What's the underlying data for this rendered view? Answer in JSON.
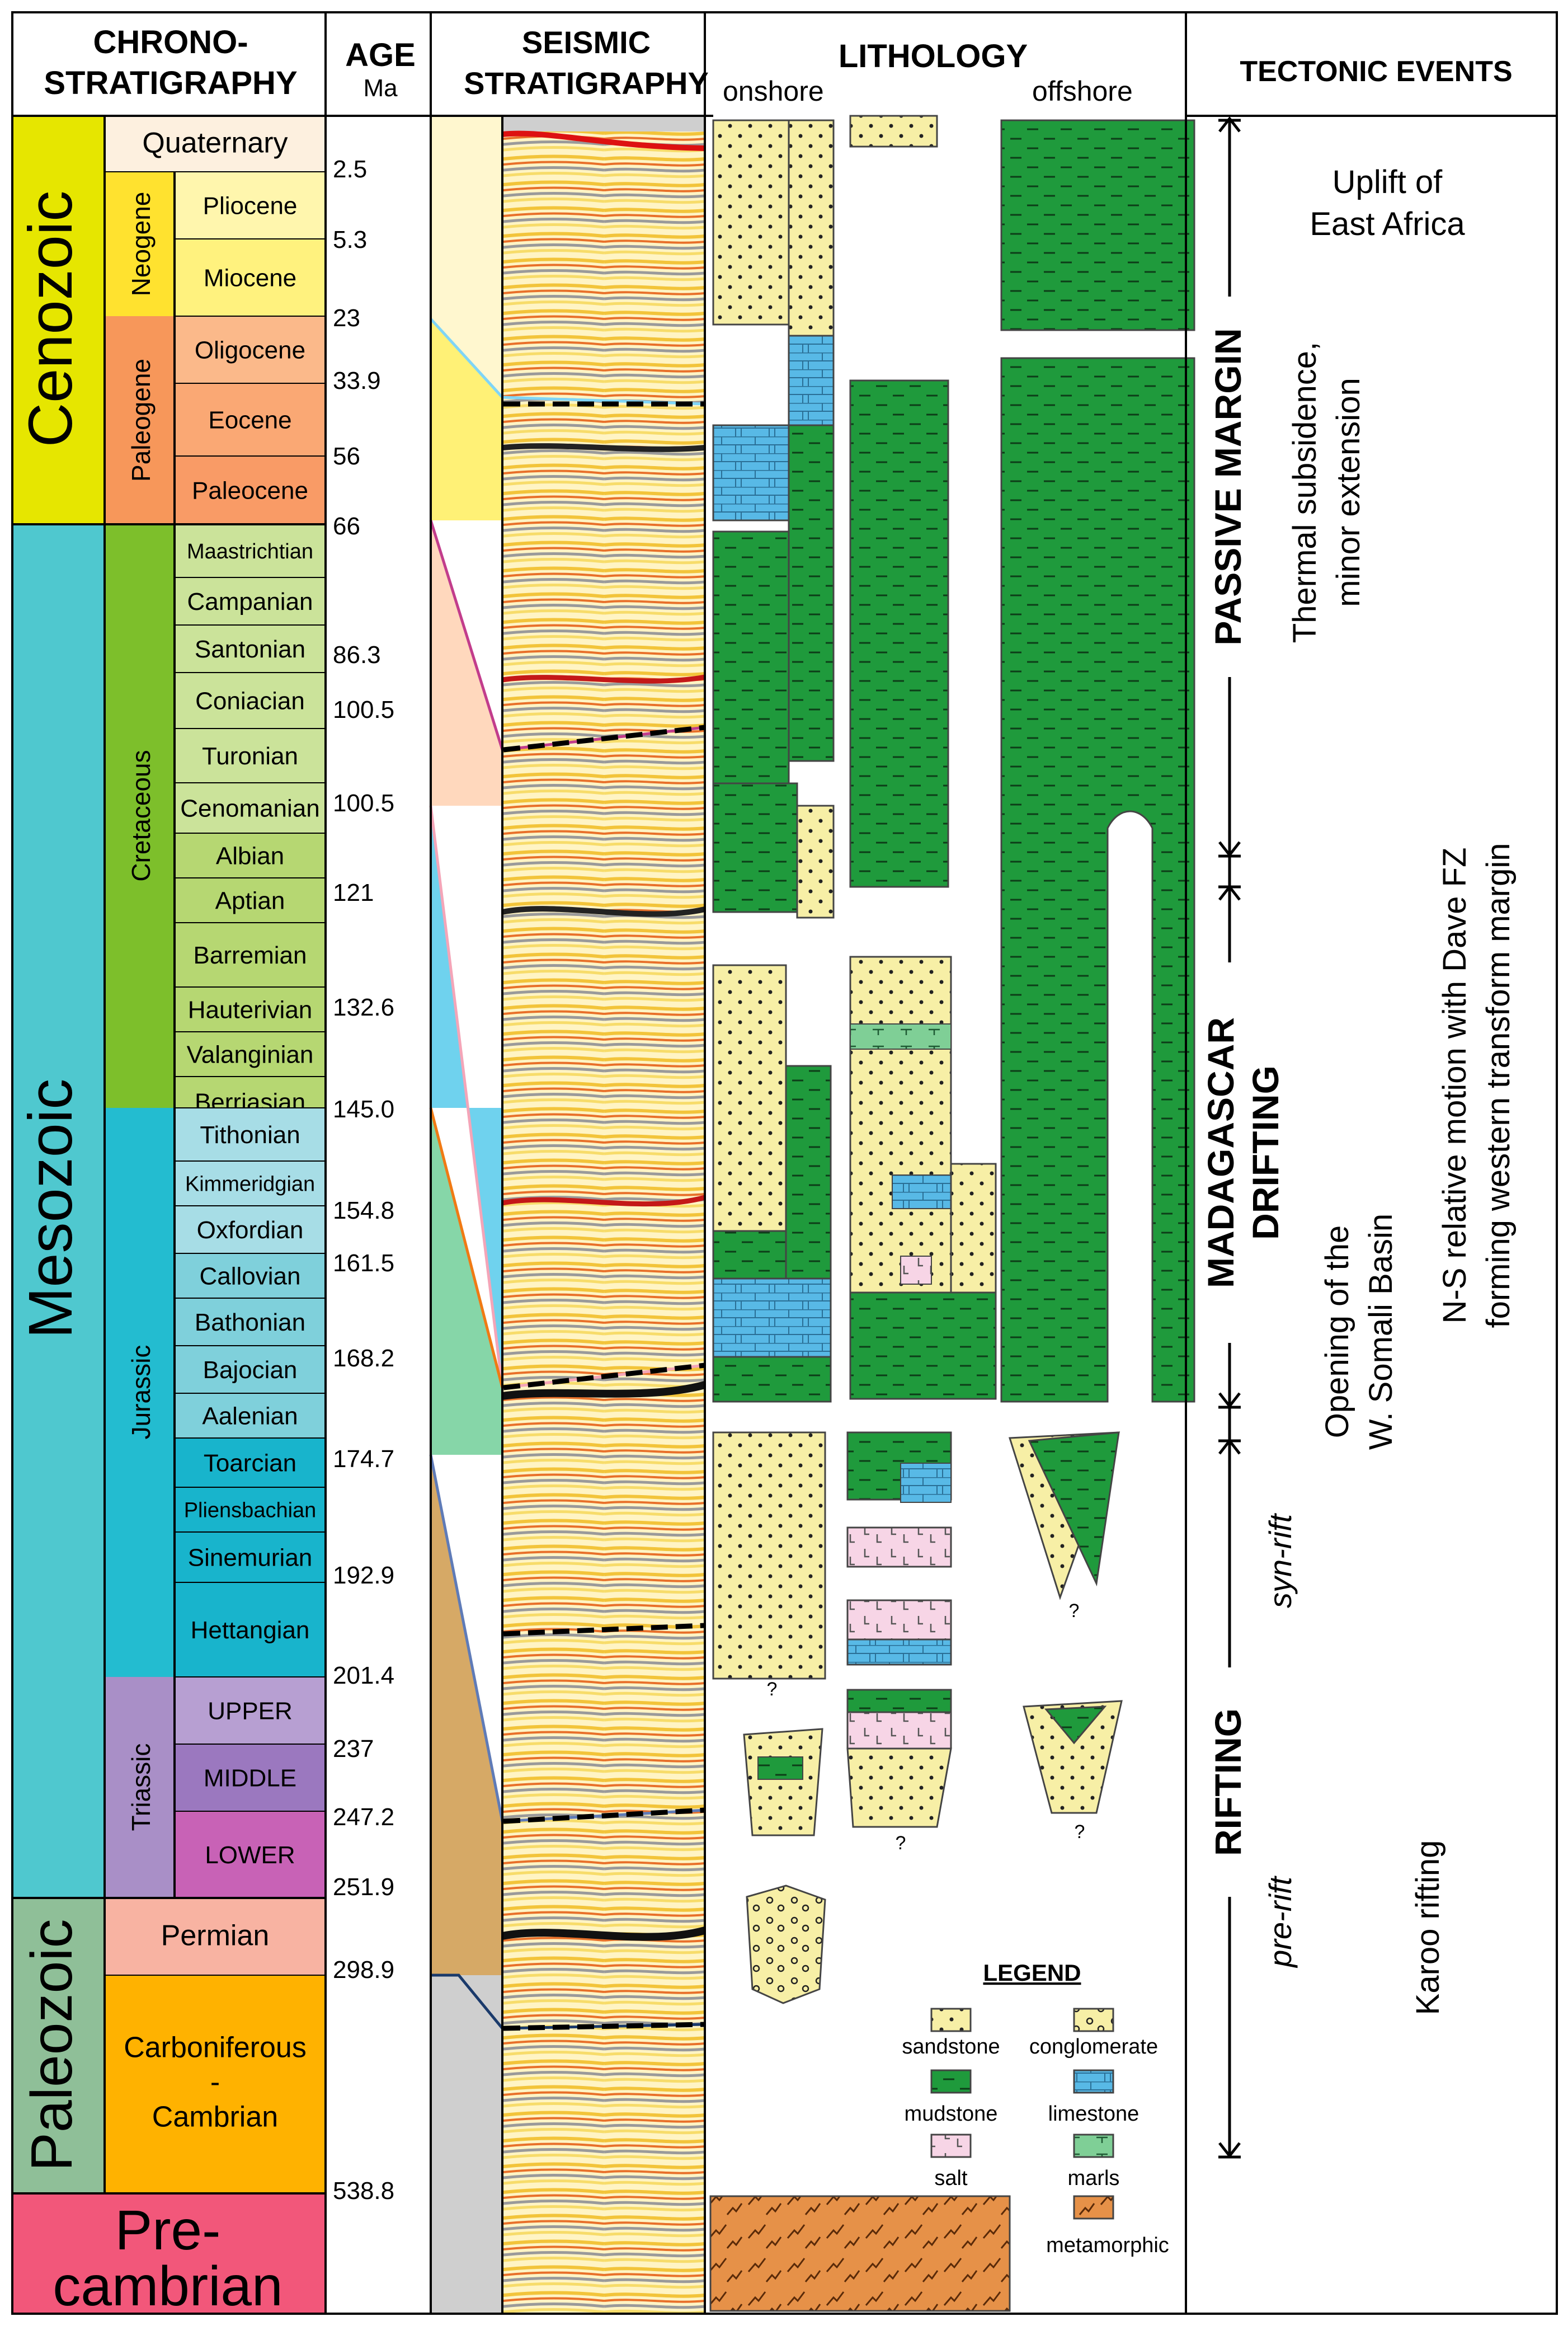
{
  "headers": {
    "chrono_1": "CHRONO-",
    "chrono_2": "STRATIGRAPHY",
    "age": "AGE",
    "age_unit": "Ma",
    "seismic_1": "SEISMIC",
    "seismic_2": "STRATIGRAPHY",
    "lithology": "LITHOLOGY",
    "onshore": "onshore",
    "offshore": "offshore",
    "tectonic": "TECTONIC EVENTS"
  },
  "eras": [
    {
      "name": "Cenozoic",
      "color": "#e6e600"
    },
    {
      "name": "Mesozoic",
      "color": "#4fc8cf"
    },
    {
      "name": "Paleozoic",
      "color": "#8fbf98"
    },
    {
      "name": "Pre-",
      "name2": "cambrian",
      "color": "#f2577a"
    }
  ],
  "periods": [
    {
      "name": "Neogene",
      "color": "#ffe22f"
    },
    {
      "name": "Paleogene",
      "color": "#f7975a"
    },
    {
      "name": "Cretaceous",
      "color": "#7dbf2b"
    },
    {
      "name": "Jurassic",
      "color": "#23bcd0"
    },
    {
      "name": "Triassic",
      "color": "#a98fc7"
    }
  ],
  "stages": [
    {
      "name": "Quaternary",
      "color": "#fdf0df"
    },
    {
      "name": "Pliocene",
      "color": "#fff6ad"
    },
    {
      "name": "Miocene",
      "color": "#fff27e"
    },
    {
      "name": "Oligocene",
      "color": "#fbb98a"
    },
    {
      "name": "Eocene",
      "color": "#faa874"
    },
    {
      "name": "Paleocene",
      "color": "#f99b66"
    },
    {
      "name": "Maastrichtian",
      "color": "#cbe39a"
    },
    {
      "name": "Campanian",
      "color": "#cbe39a"
    },
    {
      "name": "Santonian",
      "color": "#cbe39a"
    },
    {
      "name": "Coniacian",
      "color": "#cbe39a"
    },
    {
      "name": "Turonian",
      "color": "#cbe39a"
    },
    {
      "name": "Cenomanian",
      "color": "#cbe39a"
    },
    {
      "name": "Albian",
      "color": "#b6d772"
    },
    {
      "name": "Aptian",
      "color": "#b6d772"
    },
    {
      "name": "Barremian",
      "color": "#b6d772"
    },
    {
      "name": "Hauterivian",
      "color": "#b6d772"
    },
    {
      "name": "Valanginian",
      "color": "#b6d772"
    },
    {
      "name": "Berriasian",
      "color": "#b6d772"
    },
    {
      "name": "Tithonian",
      "color": "#a7dde6"
    },
    {
      "name": "Kimmeridgian",
      "color": "#a7dde6"
    },
    {
      "name": "Oxfordian",
      "color": "#a7dde6"
    },
    {
      "name": "Callovian",
      "color": "#7fd0db"
    },
    {
      "name": "Bathonian",
      "color": "#7fd0db"
    },
    {
      "name": "Bajocian",
      "color": "#7fd0db"
    },
    {
      "name": "Aalenian",
      "color": "#7fd0db"
    },
    {
      "name": "Toarcian",
      "color": "#18b4cc"
    },
    {
      "name": "Pliensbachian",
      "color": "#18b4cc"
    },
    {
      "name": "Sinemurian",
      "color": "#18b4cc"
    },
    {
      "name": "Hettangian",
      "color": "#18b4cc"
    },
    {
      "name": "UPPER",
      "color": "#b79fd2"
    },
    {
      "name": "MIDDLE",
      "color": "#9b78bf"
    },
    {
      "name": "LOWER",
      "color": "#c862b6"
    },
    {
      "name": "Permian",
      "color": "#f8b3a2"
    },
    {
      "name": "Carboniferous",
      "name2": "-",
      "name3": "Cambrian",
      "color": "#ffb200"
    }
  ],
  "ages": [
    "2.5",
    "5.3",
    "23",
    "33.9",
    "56",
    "66",
    "86.3",
    "100.5",
    "100.5",
    "121",
    "132.6",
    "145.0",
    "154.8",
    "161.5",
    "168.2",
    "174.7",
    "192.9",
    "201.4",
    "237",
    "247.2",
    "251.9",
    "298.9",
    "538.8"
  ],
  "tectonic": {
    "passive_margin": "PASSIVE MARGIN",
    "drifting_1": "MADAGASCAR",
    "drifting_2": "DRIFTING",
    "rifting": "RIFTING",
    "syn_rift": "syn-rift",
    "pre_rift": "pre-rift",
    "uplift_1": "Uplift of",
    "uplift_2": "East Africa",
    "thermal_1": "Thermal subsidence,",
    "thermal_2": "minor extension",
    "opening_1": "Opening of the",
    "opening_2": "W. Somali Basin",
    "ns_1": "N-S relative motion with Dave FZ",
    "ns_2": "forming western transform margin",
    "karoo": "Karoo rifting"
  },
  "legend": {
    "title": "LEGEND",
    "items": [
      {
        "name": "sandstone",
        "color": "#f7efa6"
      },
      {
        "name": "conglomerate",
        "color": "#f7efa6"
      },
      {
        "name": "mudstone",
        "color": "#1f9a3c"
      },
      {
        "name": "limestone",
        "color": "#58b9e6"
      },
      {
        "name": "salt",
        "color": "#f7d5e6"
      },
      {
        "name": "marls",
        "color": "#7fcf96"
      },
      {
        "name": "metamorphic",
        "color": "#e69148"
      }
    ]
  },
  "question_mark": "?"
}
